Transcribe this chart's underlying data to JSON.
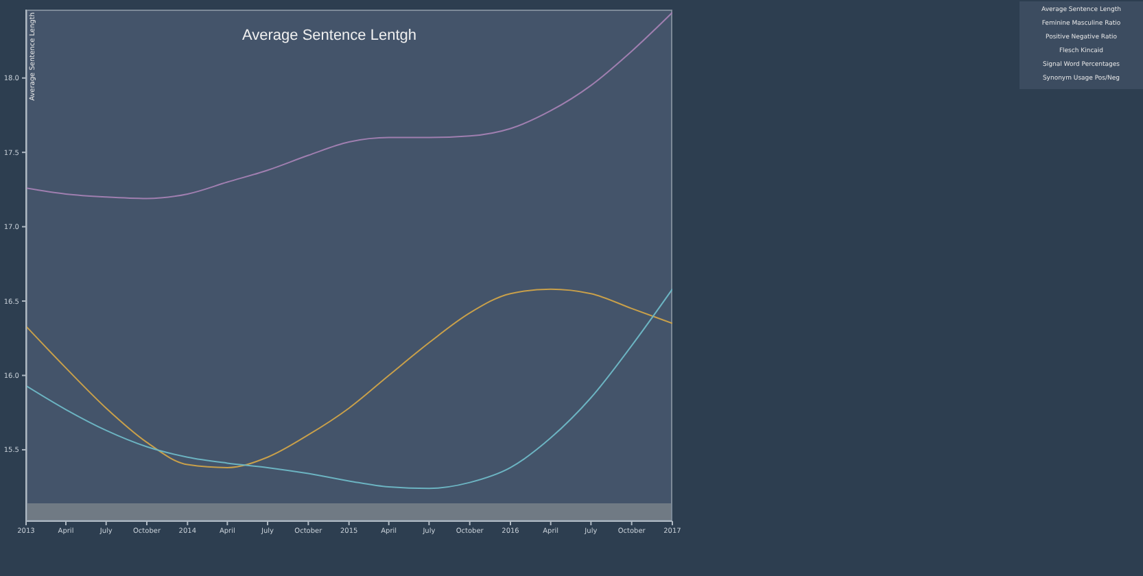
{
  "chart_data": {
    "type": "line",
    "title": "Average Sentence Lentgh",
    "ylabel": "Average Sentence Length",
    "x": [
      "2013-01",
      "2013-04",
      "2013-07",
      "2013-10",
      "2014-01",
      "2014-04",
      "2014-07",
      "2014-10",
      "2015-01",
      "2015-04",
      "2015-07",
      "2015-10",
      "2016-01",
      "2016-04",
      "2016-07",
      "2016-10",
      "2017-01"
    ],
    "series": [
      {
        "color": "#a07fb0",
        "values": [
          17.26,
          17.22,
          17.2,
          17.19,
          17.22,
          17.3,
          17.38,
          17.48,
          17.57,
          17.6,
          17.6,
          17.61,
          17.66,
          17.78,
          17.95,
          18.18,
          18.44
        ]
      },
      {
        "color": "#c9a04a",
        "values": [
          16.33,
          16.05,
          15.78,
          15.55,
          15.4,
          15.38,
          15.45,
          15.6,
          15.78,
          16.0,
          16.22,
          16.42,
          16.55,
          16.58,
          16.55,
          16.45,
          16.35
        ]
      },
      {
        "color": "#6cb4c2",
        "values": [
          15.93,
          15.77,
          15.63,
          15.52,
          15.45,
          15.41,
          15.38,
          15.34,
          15.29,
          15.25,
          15.24,
          15.28,
          15.38,
          15.58,
          15.85,
          16.2,
          16.58
        ]
      }
    ],
    "xlim": [
      "2013-01",
      "2017-01"
    ],
    "xticks": [
      {
        "value": "2013-01",
        "label": "2013"
      },
      {
        "value": "2013-04",
        "label": "April"
      },
      {
        "value": "2013-07",
        "label": "July"
      },
      {
        "value": "2013-10",
        "label": "October"
      },
      {
        "value": "2014-01",
        "label": "2014"
      },
      {
        "value": "2014-04",
        "label": "April"
      },
      {
        "value": "2014-07",
        "label": "July"
      },
      {
        "value": "2014-10",
        "label": "October"
      },
      {
        "value": "2015-01",
        "label": "2015"
      },
      {
        "value": "2015-04",
        "label": "April"
      },
      {
        "value": "2015-07",
        "label": "July"
      },
      {
        "value": "2015-10",
        "label": "October"
      },
      {
        "value": "2016-01",
        "label": "2016"
      },
      {
        "value": "2016-04",
        "label": "April"
      },
      {
        "value": "2016-07",
        "label": "July"
      },
      {
        "value": "2016-10",
        "label": "October"
      },
      {
        "value": "2017-01",
        "label": "2017"
      }
    ],
    "ylim": [
      15.02,
      18.46
    ],
    "yticks": [
      {
        "value": 15.5,
        "label": "15.5"
      },
      {
        "value": 16,
        "label": "16.0"
      },
      {
        "value": 16.5,
        "label": "16.5"
      },
      {
        "value": 17,
        "label": "17.0"
      },
      {
        "value": 17.5,
        "label": "17.5"
      },
      {
        "value": 18,
        "label": "18.0"
      }
    ],
    "annotations": [
      "Average Sentence Length",
      "Feminine Masculine Ratio",
      "Positive Negative Ratio",
      "Flesch Kincaid",
      "Signal Word Percentages",
      "Synonym Usage Pos/Neg"
    ],
    "grid": false
  }
}
